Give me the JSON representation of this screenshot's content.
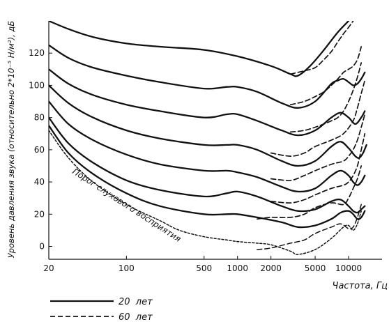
{
  "chart_data": {
    "type": "line",
    "xlabel": "Частота,  Гц",
    "ylabel": "Уровень давления звука (относительно 2*10⁻⁵ Н/м²), дБ",
    "x_scale": "log",
    "xlim": [
      20,
      20000
    ],
    "ylim": [
      -8,
      140
    ],
    "x_ticks": [
      {
        "value": 20,
        "label": "20"
      },
      {
        "value": 100,
        "label": "100"
      },
      {
        "value": 500,
        "label": "500"
      },
      {
        "value": 1000,
        "label": "1000"
      },
      {
        "value": 2000,
        "label": "2000"
      },
      {
        "value": 5000,
        "label": "5000"
      },
      {
        "value": 10000,
        "label": "10000"
      }
    ],
    "y_ticks": [
      {
        "value": 0,
        "label": "0"
      },
      {
        "value": 20,
        "label": "20"
      },
      {
        "value": 40,
        "label": "40"
      },
      {
        "value": 60,
        "label": "60"
      },
      {
        "value": 80,
        "label": "80"
      },
      {
        "value": 100,
        "label": "100"
      },
      {
        "value": 120,
        "label": "120"
      }
    ],
    "annotation": "Порог слухового восприятия",
    "legend": {
      "placement": "bottom-left",
      "items": [
        {
          "label": "20  лет",
          "style": "solid"
        },
        {
          "label": "60  лет",
          "style": "dashed"
        }
      ]
    },
    "series": [
      {
        "group": "20",
        "style": "solid",
        "width": 2.3,
        "points": [
          [
            20,
            140
          ],
          [
            30,
            135
          ],
          [
            50,
            130
          ],
          [
            100,
            126
          ],
          [
            200,
            124
          ],
          [
            500,
            122
          ],
          [
            1000,
            118
          ],
          [
            2000,
            112
          ],
          [
            3000,
            107
          ],
          [
            3500,
            106
          ],
          [
            4500,
            112
          ],
          [
            6000,
            122
          ],
          [
            8000,
            133
          ],
          [
            10000,
            140
          ]
        ]
      },
      {
        "group": "20",
        "style": "solid",
        "width": 2.3,
        "points": [
          [
            20,
            125
          ],
          [
            30,
            117
          ],
          [
            50,
            111
          ],
          [
            100,
            106
          ],
          [
            200,
            102
          ],
          [
            500,
            98
          ],
          [
            800,
            99
          ],
          [
            1000,
            99
          ],
          [
            1500,
            96
          ],
          [
            2500,
            89
          ],
          [
            3500,
            86
          ],
          [
            5000,
            90
          ],
          [
            7000,
            101
          ],
          [
            8000,
            103
          ],
          [
            9000,
            104
          ],
          [
            10000,
            102
          ],
          [
            11000,
            100
          ],
          [
            12000,
            101
          ],
          [
            13000,
            104
          ],
          [
            14000,
            108
          ]
        ]
      },
      {
        "group": "20",
        "style": "solid",
        "width": 2.3,
        "points": [
          [
            20,
            110
          ],
          [
            30,
            101
          ],
          [
            50,
            94
          ],
          [
            100,
            88
          ],
          [
            200,
            84
          ],
          [
            500,
            80
          ],
          [
            800,
            82
          ],
          [
            1000,
            82
          ],
          [
            1500,
            78
          ],
          [
            2500,
            72
          ],
          [
            3500,
            69
          ],
          [
            5000,
            72
          ],
          [
            7000,
            80
          ],
          [
            8500,
            83
          ],
          [
            10000,
            80
          ],
          [
            11500,
            76
          ],
          [
            13000,
            80
          ],
          [
            14000,
            84
          ]
        ]
      },
      {
        "group": "20",
        "style": "solid",
        "width": 2.3,
        "points": [
          [
            20,
            100
          ],
          [
            30,
            89
          ],
          [
            50,
            80
          ],
          [
            100,
            72
          ],
          [
            200,
            67
          ],
          [
            500,
            63
          ],
          [
            800,
            63
          ],
          [
            1000,
            63
          ],
          [
            1500,
            60
          ],
          [
            2500,
            53
          ],
          [
            3500,
            50
          ],
          [
            5000,
            53
          ],
          [
            7000,
            62
          ],
          [
            8500,
            65
          ],
          [
            10000,
            61
          ],
          [
            11500,
            56
          ],
          [
            12500,
            55
          ],
          [
            13500,
            58
          ],
          [
            14500,
            63
          ]
        ]
      },
      {
        "group": "20",
        "style": "solid",
        "width": 2.3,
        "points": [
          [
            20,
            90
          ],
          [
            30,
            76
          ],
          [
            50,
            66
          ],
          [
            100,
            57
          ],
          [
            200,
            51
          ],
          [
            500,
            47
          ],
          [
            800,
            47
          ],
          [
            1000,
            46
          ],
          [
            1500,
            43
          ],
          [
            2500,
            37
          ],
          [
            3500,
            34
          ],
          [
            5000,
            36
          ],
          [
            7000,
            44
          ],
          [
            8500,
            47
          ],
          [
            10000,
            44
          ],
          [
            11000,
            40
          ],
          [
            12000,
            38
          ],
          [
            13000,
            40
          ],
          [
            14000,
            44
          ]
        ]
      },
      {
        "group": "20",
        "style": "solid",
        "width": 2.3,
        "points": [
          [
            20,
            80
          ],
          [
            30,
            64
          ],
          [
            50,
            52
          ],
          [
            100,
            41
          ],
          [
            200,
            35
          ],
          [
            500,
            31
          ],
          [
            800,
            33
          ],
          [
            1000,
            34
          ],
          [
            1500,
            31
          ],
          [
            2500,
            25
          ],
          [
            3500,
            22
          ],
          [
            5000,
            23
          ],
          [
            7000,
            28
          ],
          [
            8500,
            29
          ],
          [
            10000,
            25
          ],
          [
            11000,
            22
          ],
          [
            12000,
            21
          ],
          [
            13000,
            23
          ],
          [
            14000,
            25
          ]
        ]
      },
      {
        "group": "20",
        "style": "solid",
        "width": 2.3,
        "points": [
          [
            20,
            75
          ],
          [
            30,
            58
          ],
          [
            50,
            45
          ],
          [
            100,
            33
          ],
          [
            200,
            25
          ],
          [
            500,
            20
          ],
          [
            800,
            20
          ],
          [
            1000,
            20
          ],
          [
            1500,
            18
          ],
          [
            2500,
            15
          ],
          [
            3500,
            12
          ],
          [
            5000,
            13
          ],
          [
            7000,
            17
          ],
          [
            8500,
            21
          ],
          [
            10000,
            22
          ],
          [
            11000,
            20
          ],
          [
            12000,
            17
          ],
          [
            13000,
            18
          ],
          [
            14000,
            22
          ]
        ]
      },
      {
        "group": "60",
        "style": "dashed",
        "width": 1.7,
        "points": [
          [
            3000,
            107
          ],
          [
            4000,
            109
          ],
          [
            5000,
            111
          ],
          [
            6000,
            116
          ],
          [
            7000,
            121
          ],
          [
            8000,
            127
          ],
          [
            9000,
            132
          ],
          [
            10000,
            136
          ],
          [
            11000,
            140
          ]
        ]
      },
      {
        "group": "60",
        "style": "dashed",
        "width": 1.7,
        "points": [
          [
            3000,
            88
          ],
          [
            4000,
            90
          ],
          [
            5000,
            93
          ],
          [
            6000,
            96
          ],
          [
            7000,
            100
          ],
          [
            8000,
            104
          ],
          [
            9000,
            108
          ],
          [
            10000,
            110
          ],
          [
            11000,
            112
          ],
          [
            12000,
            116
          ],
          [
            13000,
            124
          ]
        ]
      },
      {
        "group": "60",
        "style": "dashed",
        "width": 1.7,
        "points": [
          [
            3000,
            71
          ],
          [
            4000,
            72
          ],
          [
            5000,
            74
          ],
          [
            6000,
            76
          ],
          [
            7000,
            78
          ],
          [
            8000,
            80
          ],
          [
            9000,
            84
          ],
          [
            10000,
            90
          ],
          [
            11000,
            97
          ],
          [
            12000,
            105
          ],
          [
            13000,
            114
          ]
        ]
      },
      {
        "group": "60",
        "style": "dashed",
        "width": 1.7,
        "points": [
          [
            2000,
            58
          ],
          [
            3000,
            56
          ],
          [
            4000,
            58
          ],
          [
            5000,
            62
          ],
          [
            7000,
            66
          ],
          [
            9000,
            70
          ],
          [
            11000,
            78
          ],
          [
            12000,
            86
          ],
          [
            13000,
            95
          ],
          [
            14000,
            103
          ]
        ]
      },
      {
        "group": "60",
        "style": "dashed",
        "width": 1.7,
        "points": [
          [
            2000,
            42
          ],
          [
            3000,
            41
          ],
          [
            4000,
            44
          ],
          [
            5000,
            47
          ],
          [
            7000,
            51
          ],
          [
            9000,
            53
          ],
          [
            10000,
            56
          ],
          [
            11000,
            60
          ],
          [
            12000,
            66
          ],
          [
            13000,
            74
          ],
          [
            14000,
            82
          ]
        ]
      },
      {
        "group": "60",
        "style": "dashed",
        "width": 1.7,
        "points": [
          [
            2000,
            28
          ],
          [
            3000,
            27
          ],
          [
            4000,
            29
          ],
          [
            5000,
            32
          ],
          [
            7000,
            36
          ],
          [
            9000,
            38
          ],
          [
            10000,
            40
          ],
          [
            11000,
            44
          ],
          [
            12000,
            50
          ],
          [
            13000,
            60
          ],
          [
            14000,
            70
          ]
        ]
      },
      {
        "group": "60",
        "style": "dashed",
        "width": 1.7,
        "points": [
          [
            1500,
            17
          ],
          [
            2000,
            18
          ],
          [
            3000,
            18
          ],
          [
            4000,
            20
          ],
          [
            5000,
            24
          ],
          [
            7000,
            27
          ],
          [
            9000,
            26
          ],
          [
            10000,
            30
          ],
          [
            11000,
            36
          ],
          [
            12000,
            42
          ],
          [
            13000,
            50
          ]
        ]
      },
      {
        "group": "threshold",
        "style": "dotted",
        "width": 1.5,
        "points": [
          [
            20,
            72
          ],
          [
            30,
            55
          ],
          [
            50,
            40
          ],
          [
            100,
            26
          ],
          [
            200,
            16
          ],
          [
            300,
            10
          ],
          [
            500,
            6
          ],
          [
            800,
            4
          ],
          [
            1000,
            3
          ],
          [
            1500,
            2
          ],
          [
            2000,
            1
          ],
          [
            3000,
            -3
          ],
          [
            3500,
            -5
          ],
          [
            5000,
            -2
          ],
          [
            7000,
            5
          ],
          [
            9000,
            12
          ],
          [
            10000,
            13
          ],
          [
            11000,
            10
          ],
          [
            12000,
            14
          ],
          [
            13000,
            22
          ]
        ]
      },
      {
        "group": "threshold",
        "style": "dashed",
        "width": 1.5,
        "points": [
          [
            1500,
            -2
          ],
          [
            2000,
            -1
          ],
          [
            3000,
            2
          ],
          [
            4000,
            4
          ],
          [
            5000,
            8
          ],
          [
            7000,
            12
          ],
          [
            8500,
            14
          ],
          [
            10000,
            11
          ],
          [
            11000,
            12
          ],
          [
            12000,
            18
          ],
          [
            13000,
            26
          ]
        ]
      }
    ]
  }
}
